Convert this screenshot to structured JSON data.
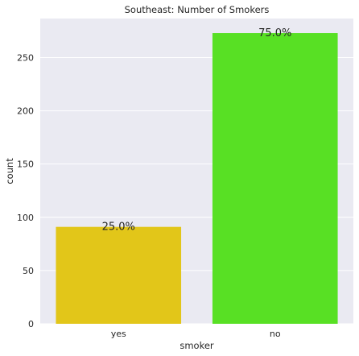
{
  "chart_data": {
    "type": "bar",
    "title": "Southeast: Number of Smokers",
    "xlabel": "smoker",
    "ylabel": "count",
    "categories": [
      "yes",
      "no"
    ],
    "values": [
      91,
      273
    ],
    "data_labels": [
      "25.0%",
      "75.0%"
    ],
    "colors": [
      "#E2C619",
      "#58E024"
    ],
    "ylim": [
      0,
      286.65
    ],
    "yticks": [
      0,
      50,
      100,
      150,
      200,
      250
    ],
    "grid": true,
    "legend": "none",
    "background": "#EAEAF2"
  }
}
